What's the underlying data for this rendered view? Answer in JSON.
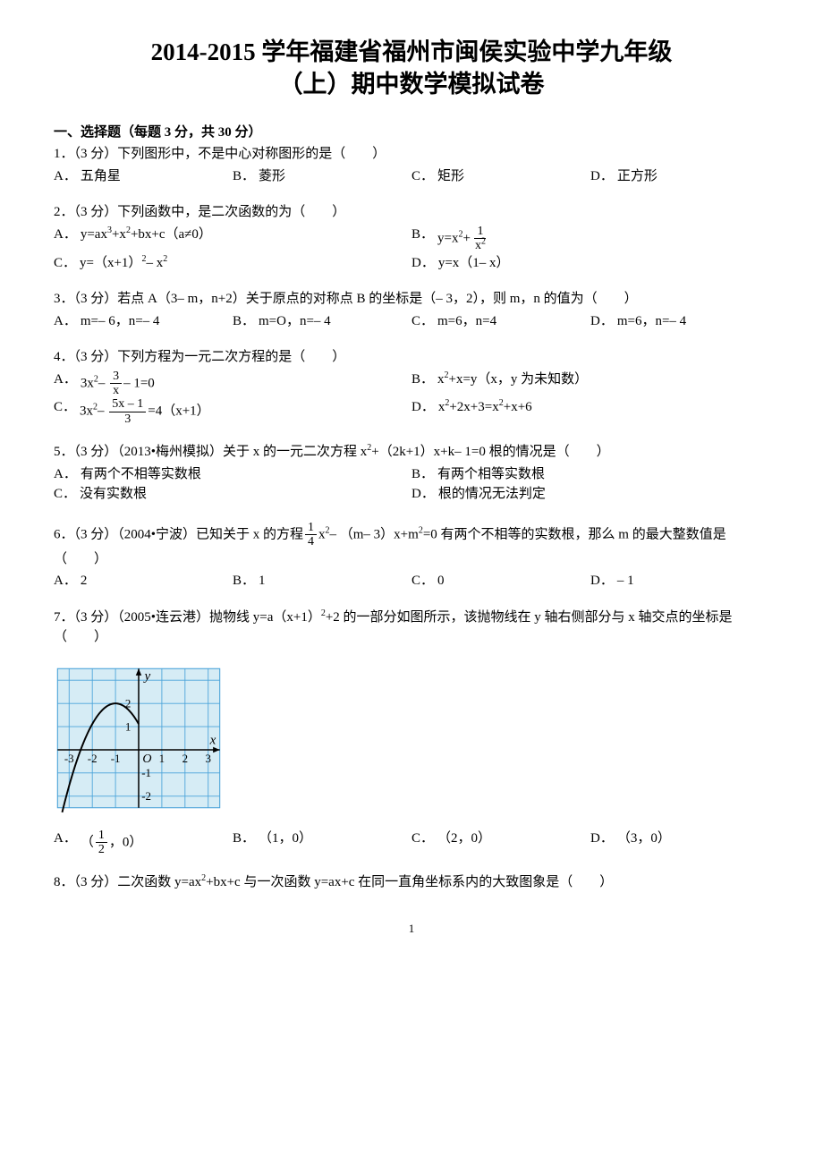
{
  "title_line1": "2014-2015 学年福建省福州市闽侯实验中学九年级",
  "title_line2": "（上）期中数学模拟试卷",
  "section1_header": "一、选择题（每题 3 分，共 30 分）",
  "q1": {
    "text": "1．（3 分）下列图形中，不是中心对称图形的是（　　）",
    "A": "五角星",
    "B": "菱形",
    "C": "矩形",
    "D": "正方形"
  },
  "q2": {
    "text": "2．（3 分）下列函数中，是二次函数的为（　　）",
    "A_pre": "y=ax",
    "A_sup1": "3",
    "A_mid": "+x",
    "A_sup2": "2",
    "A_post": "+bx+c（a≠0）",
    "B_pre": "y=x",
    "B_sup": "2",
    "B_mid": "+",
    "B_num": "1",
    "B_den": "x",
    "B_den_sup": "2",
    "C_pre": "y=（x+1）",
    "C_sup": "2",
    "C_post": "– x",
    "C_sup2": "2",
    "D": "y=x（1– x）"
  },
  "q3": {
    "text": "3．（3 分）若点 A（3– m，n+2）关于原点的对称点 B 的坐标是（– 3，2），则 m，n 的值为（　　）",
    "A": "m=– 6，n=– 4",
    "B": "m=O，n=– 4",
    "C": "m=6，n=4",
    "D": "m=6，n=– 4"
  },
  "q4": {
    "text": "4．（3 分）下列方程为一元二次方程的是（　　）",
    "A_pre": "3x",
    "A_sup": "2",
    "A_mid": "– ",
    "A_num": "3",
    "A_den": "x",
    "A_post": "– 1=0",
    "B_pre": "x",
    "B_sup": "2",
    "B_post": "+x=y（x，y 为未知数）",
    "C_pre": "3x",
    "C_sup": "2",
    "C_mid": "– ",
    "C_num": "5x – 1",
    "C_den": "3",
    "C_post": "=4（x+1）",
    "D_pre": "x",
    "D_sup1": "2",
    "D_mid": "+2x+3=x",
    "D_sup2": "2",
    "D_post": "+x+6"
  },
  "q5": {
    "text_pre": "5．（3 分）（2013•梅州模拟）关于 x 的一元二次方程 x",
    "sup": "2",
    "text_post": "+（2k+1）x+k– 1=0 根的情况是（　　）",
    "A": "有两个不相等实数根",
    "B": "有两个相等实数根",
    "C": "没有实数根",
    "D": "根的情况无法判定"
  },
  "q6": {
    "text_pre": "6．（3 分）（2004•宁波）已知关于 x 的方程",
    "num": "1",
    "den": "4",
    "text_mid": "x",
    "sup1": "2",
    "text_mid2": "– （m– 3）x+m",
    "sup2": "2",
    "text_post": "=0 有两个不相等的实数根，那么 m 的最大整数值是（　　）",
    "A": "2",
    "B": "1",
    "C": "0",
    "D": "– 1"
  },
  "q7": {
    "text_pre": "7．（3 分）（2005•连云港）抛物线 y=a（x+1）",
    "sup": "2",
    "text_post": "+2 的一部分如图所示，该抛物线在 y 轴右侧部分与 x 轴交点的坐标是（　　）",
    "A_pre": "（",
    "A_num": "1",
    "A_den": "2",
    "A_post": "，0）",
    "B": "（1，0）",
    "C": "（2，0）",
    "D": "（3，0）",
    "graph": {
      "bg": "#d6ecf5",
      "grid_color": "#4aa3d9",
      "axis_color": "#000000",
      "curve_color": "#000000",
      "x_ticks": [
        "-3",
        "-2",
        "-1",
        "1",
        "2",
        "3"
      ],
      "y_ticks_pos": [
        "1",
        "2"
      ],
      "y_ticks_neg": [
        "-1",
        "-2"
      ],
      "origin_label": "O",
      "x_label": "x",
      "y_label": "y",
      "cell": 24,
      "xlim": [
        -3.5,
        3.5
      ],
      "ylim": [
        -2.5,
        3.5
      ],
      "vertex": [
        -1,
        2
      ],
      "a": -0.888,
      "curve_x_end": 0
    }
  },
  "q8": {
    "text_pre": "8．（3 分）二次函数 y=ax",
    "sup": "2",
    "text_post": "+bx+c 与一次函数 y=ax+c 在同一直角坐标系内的大致图象是（　　）"
  },
  "page_number": "1"
}
